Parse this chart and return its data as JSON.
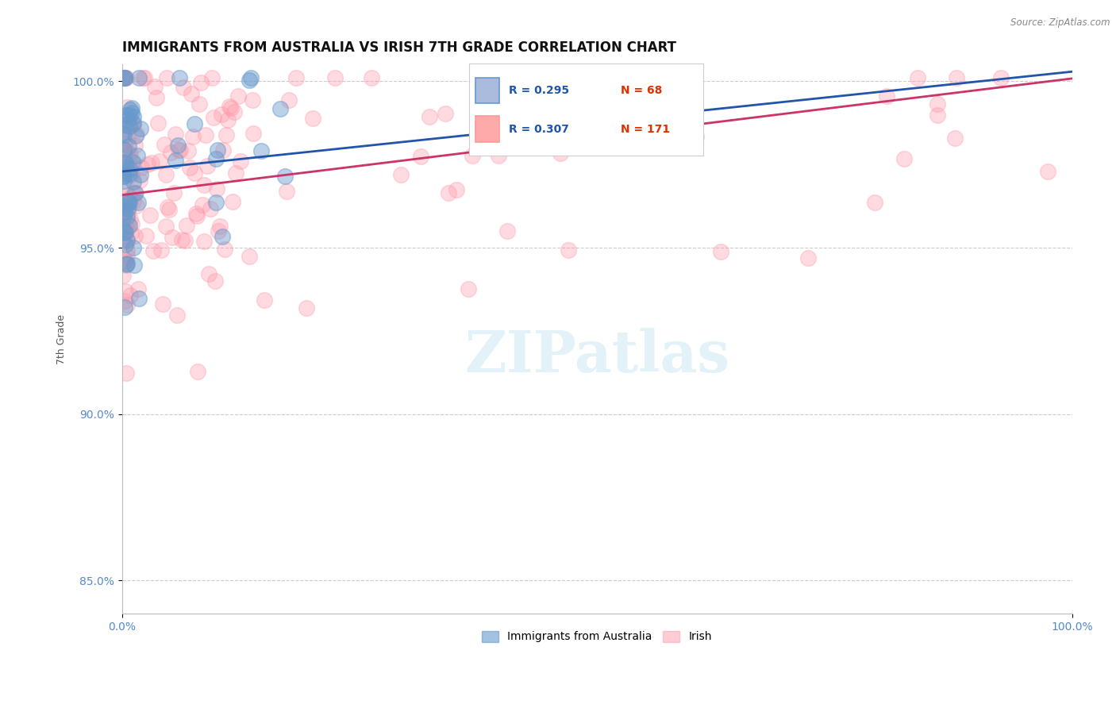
{
  "title": "IMMIGRANTS FROM AUSTRALIA VS IRISH 7TH GRADE CORRELATION CHART",
  "source": "Source: ZipAtlas.com",
  "ylabel": "7th Grade",
  "watermark_text": "ZIPatlas",
  "R_aus": 0.295,
  "N_aus": 68,
  "R_ire": 0.307,
  "N_ire": 171,
  "aus_color": "#6699cc",
  "aus_line_color": "#2255aa",
  "ire_color": "#ff99aa",
  "ire_line_color": "#cc3366",
  "xlim": [
    0.0,
    1.0
  ],
  "ylim": [
    0.84,
    1.005
  ],
  "yticks": [
    0.85,
    0.9,
    0.95,
    1.0
  ],
  "ytick_labels": [
    "85.0%",
    "90.0%",
    "95.0%",
    "100.0%"
  ],
  "xtick_labels": [
    "0.0%",
    "100.0%"
  ],
  "grid_color": "#cccccc",
  "background_color": "#ffffff",
  "title_fontsize": 12,
  "axis_label_fontsize": 9,
  "tick_fontsize": 10,
  "tick_color": "#5588cc"
}
